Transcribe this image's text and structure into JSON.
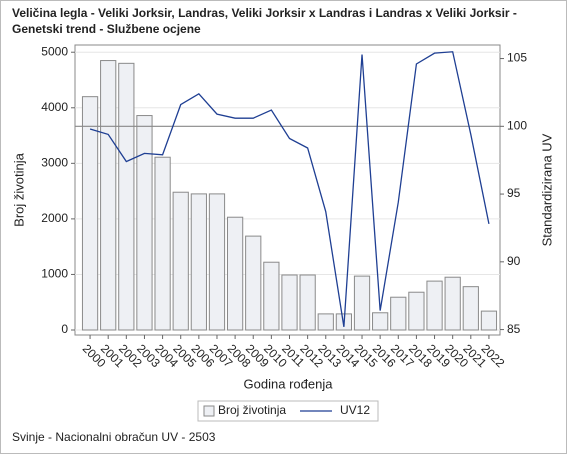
{
  "chart_data": {
    "type": "bar_line",
    "title": [
      "Veličina legla - Veliki Jorksir, Landras, Veliki Jorksir x Landras i Landras x Veliki Jorksir -",
      "Genetski trend - Službene ocjene"
    ],
    "xlabel": "Godina rođenja",
    "ylabel": "Broj životinja",
    "y2label": "Standardizirana UV",
    "categories": [
      "2000",
      "2001",
      "2002",
      "2003",
      "2004",
      "2005",
      "2006",
      "2007",
      "2008",
      "2009",
      "2010",
      "2011",
      "2012",
      "2013",
      "2014",
      "2015",
      "2016",
      "2017",
      "2018",
      "2019",
      "2020",
      "2021",
      "2022"
    ],
    "series": [
      {
        "name": "Broj životinja",
        "type": "bar",
        "color": "#eef0f4",
        "values": [
          4200,
          4850,
          4800,
          3860,
          3110,
          2480,
          2450,
          2450,
          2030,
          1690,
          1220,
          990,
          990,
          290,
          290,
          970,
          310,
          590,
          680,
          880,
          950,
          780,
          340
        ]
      },
      {
        "name": "UV12",
        "type": "line",
        "axis": "y2",
        "color": "#1f3f93",
        "values": [
          99.8,
          99.4,
          97.4,
          98.0,
          97.9,
          101.6,
          102.4,
          100.9,
          100.6,
          100.6,
          101.2,
          99.1,
          98.4,
          93.7,
          85.2,
          105.3,
          86.4,
          94.4,
          104.6,
          105.4,
          105.5,
          99.4,
          92.8
        ]
      }
    ],
    "ylim": [
      -90,
      5130
    ],
    "yticks": [
      0,
      1000,
      2000,
      3000,
      4000,
      5000
    ],
    "y2lim": [
      84.6,
      106
    ],
    "y2ticks": [
      85,
      90,
      95,
      100,
      105
    ],
    "reference_line": {
      "axis": "y2",
      "value": 100
    },
    "grid": true,
    "legend": "bottom",
    "footnote": "Svinje - Nacionalni obračun UV - 2503"
  }
}
